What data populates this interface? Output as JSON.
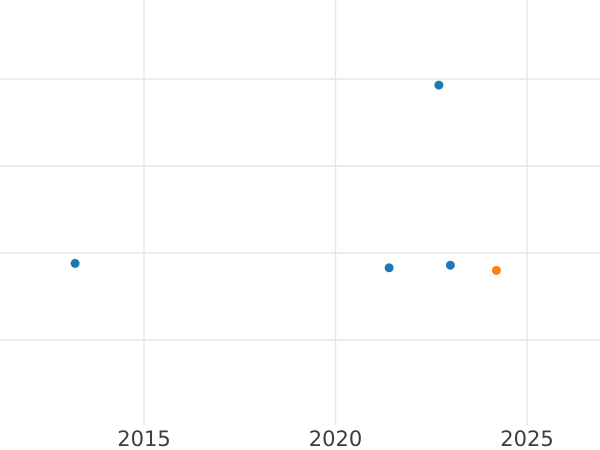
{
  "chart_data": {
    "type": "scatter",
    "title": "",
    "xlabel": "",
    "ylabel": "",
    "legend": false,
    "grid": true,
    "x_ticks": [
      2015,
      2020,
      2025
    ],
    "x_tick_labels": [
      "2015",
      "2020",
      "2025"
    ],
    "x_range_visible": [
      2011.2,
      2026.9
    ],
    "y_axis_labels_visible": false,
    "y_unit": "gridline-spacing units (y-axis labels not visible in crop)",
    "y_gridline_units": [
      1,
      2,
      3,
      4
    ],
    "series": [
      {
        "name": "blue-series",
        "color": "#1f77b4",
        "points": [
          {
            "x": 2013.2,
            "y": 1.88
          },
          {
            "x": 2021.4,
            "y": 1.83
          },
          {
            "x": 2022.7,
            "y": 3.93
          },
          {
            "x": 2023.0,
            "y": 1.86
          }
        ]
      },
      {
        "name": "orange-series",
        "color": "#ff7f0e",
        "points": [
          {
            "x": 2024.2,
            "y": 1.8
          }
        ]
      }
    ],
    "colors": {
      "grid": "#e6e6e6",
      "tick_label": "#3d3d3d",
      "background": "#ffffff"
    }
  }
}
